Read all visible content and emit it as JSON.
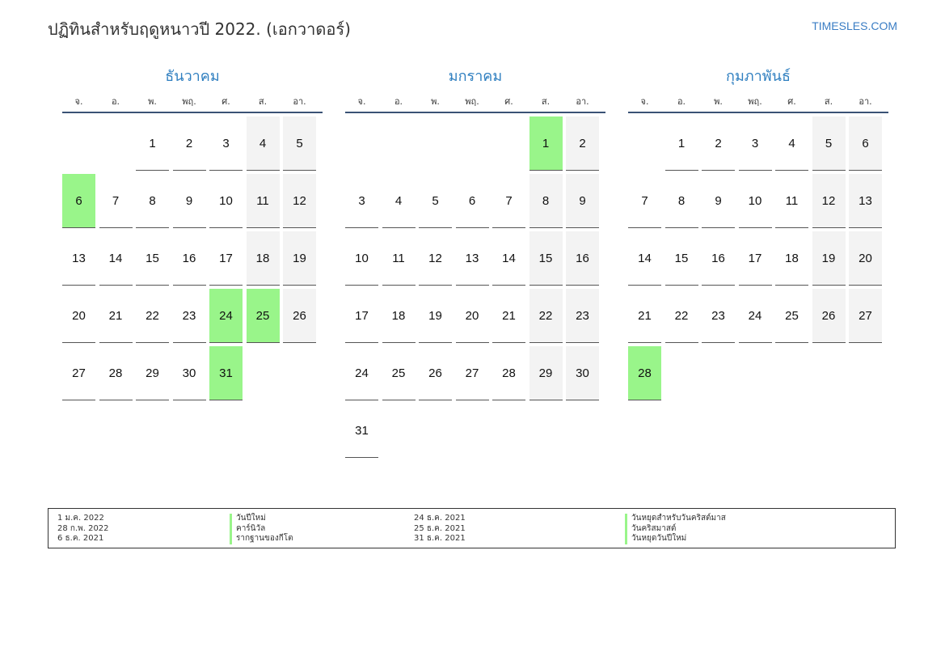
{
  "title": "ปฏิทินสำหรับฤดูหนาวปี 2022. (เอกวาดอร์)",
  "site": "TIMESLES.COM",
  "colors": {
    "accent": "#2f7fc0",
    "holiday": "#99f58a",
    "weekend": "#f3f3f3"
  },
  "weekdays": [
    "จ.",
    "อ.",
    "พ.",
    "พฤ.",
    "ศ.",
    "ส.",
    "อา."
  ],
  "months": [
    {
      "name": "ธันวาคม",
      "start_offset": 2,
      "days": 31,
      "holidays": [
        6,
        24,
        25,
        31
      ]
    },
    {
      "name": "มกราคม",
      "start_offset": 5,
      "days": 31,
      "holidays": [
        1
      ]
    },
    {
      "name": "กุมภาพันธ์",
      "start_offset": 1,
      "days": 28,
      "holidays": [
        28
      ]
    }
  ],
  "legend": {
    "left_dates": [
      "1 ม.ค. 2022",
      "28 ก.พ. 2022",
      "6 ธ.ค. 2021"
    ],
    "left_names": [
      "วันปีใหม่",
      "คาร์นิวัล",
      "รากฐานของกีโต"
    ],
    "right_dates": [
      "24 ธ.ค. 2021",
      "25 ธ.ค. 2021",
      "31 ธ.ค. 2021"
    ],
    "right_names": [
      "วันหยุดสำหรับวันคริสต์มาส",
      "วันคริสมาสต์",
      "วันหยุดวันปีใหม่"
    ]
  }
}
